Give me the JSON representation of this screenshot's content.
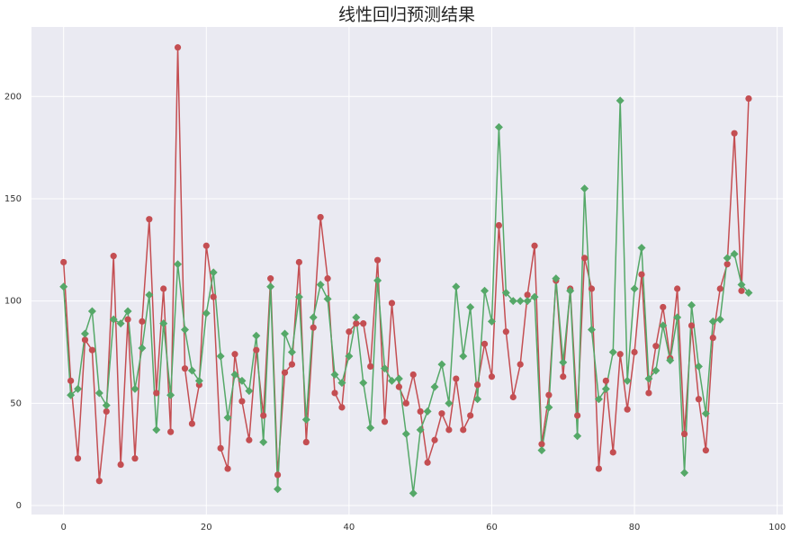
{
  "chart_data": {
    "type": "line",
    "title": "线性回归预测结果",
    "x": [
      0,
      1,
      2,
      3,
      4,
      5,
      6,
      7,
      8,
      9,
      10,
      11,
      12,
      13,
      14,
      15,
      16,
      17,
      18,
      19,
      20,
      21,
      22,
      23,
      24,
      25,
      26,
      27,
      28,
      29,
      30,
      31,
      32,
      33,
      34,
      35,
      36,
      37,
      38,
      39,
      40,
      41,
      42,
      43,
      44,
      45,
      46,
      47,
      48,
      49,
      50,
      51,
      52,
      53,
      54,
      55,
      56,
      57,
      58,
      59,
      60,
      61,
      62,
      63,
      64,
      65,
      66,
      67,
      68,
      69,
      70,
      71,
      72,
      73,
      74,
      75,
      76,
      77,
      78,
      79,
      80,
      81,
      82,
      83,
      84,
      85,
      86,
      87,
      88,
      89,
      90,
      91,
      92,
      93,
      94,
      95,
      96
    ],
    "series": [
      {
        "color": "#c44e52",
        "marker": "circle",
        "values": [
          119,
          61,
          23,
          81,
          76,
          12,
          46,
          122,
          20,
          91,
          23,
          90,
          140,
          55,
          106,
          36,
          224,
          67,
          40,
          59,
          127,
          102,
          28,
          18,
          74,
          51,
          32,
          76,
          44,
          111,
          15,
          65,
          69,
          119,
          31,
          87,
          141,
          111,
          55,
          48,
          85,
          89,
          89,
          68,
          120,
          41,
          99,
          58,
          50,
          64,
          46,
          21,
          32,
          45,
          37,
          62,
          37,
          44,
          59,
          79,
          63,
          137,
          85,
          53,
          69,
          103,
          127,
          30,
          54,
          110,
          63,
          106,
          44,
          121,
          106,
          18,
          61,
          26,
          74,
          47,
          75,
          113,
          55,
          78,
          97,
          72,
          106,
          35,
          88,
          52,
          27,
          82,
          106,
          118,
          182,
          105,
          199
        ]
      },
      {
        "color": "#55a868",
        "marker": "diamond",
        "values": [
          107,
          54,
          57,
          84,
          95,
          55,
          49,
          91,
          89,
          95,
          57,
          77,
          103,
          37,
          89,
          54,
          118,
          86,
          66,
          61,
          94,
          114,
          73,
          43,
          64,
          61,
          56,
          83,
          31,
          107,
          8,
          84,
          75,
          102,
          42,
          92,
          108,
          101,
          64,
          60,
          73,
          92,
          60,
          38,
          110,
          67,
          61,
          62,
          35,
          6,
          37,
          46,
          58,
          69,
          50,
          107,
          73,
          97,
          52,
          105,
          90,
          185,
          104,
          100,
          100,
          100,
          102,
          27,
          48,
          111,
          70,
          105,
          34,
          155,
          86,
          52,
          57,
          75,
          198,
          61,
          106,
          126,
          62,
          66,
          88,
          71,
          92,
          16,
          98,
          68,
          45,
          90,
          91,
          121,
          123,
          108,
          104
        ]
      }
    ],
    "xlim": [
      -4.5,
      100.8
    ],
    "xticks": [
      0,
      20,
      40,
      60,
      80,
      100
    ],
    "ylim": [
      -4.4,
      234
    ],
    "yticks": [
      0,
      50,
      100,
      150,
      200
    ],
    "grid": true
  }
}
